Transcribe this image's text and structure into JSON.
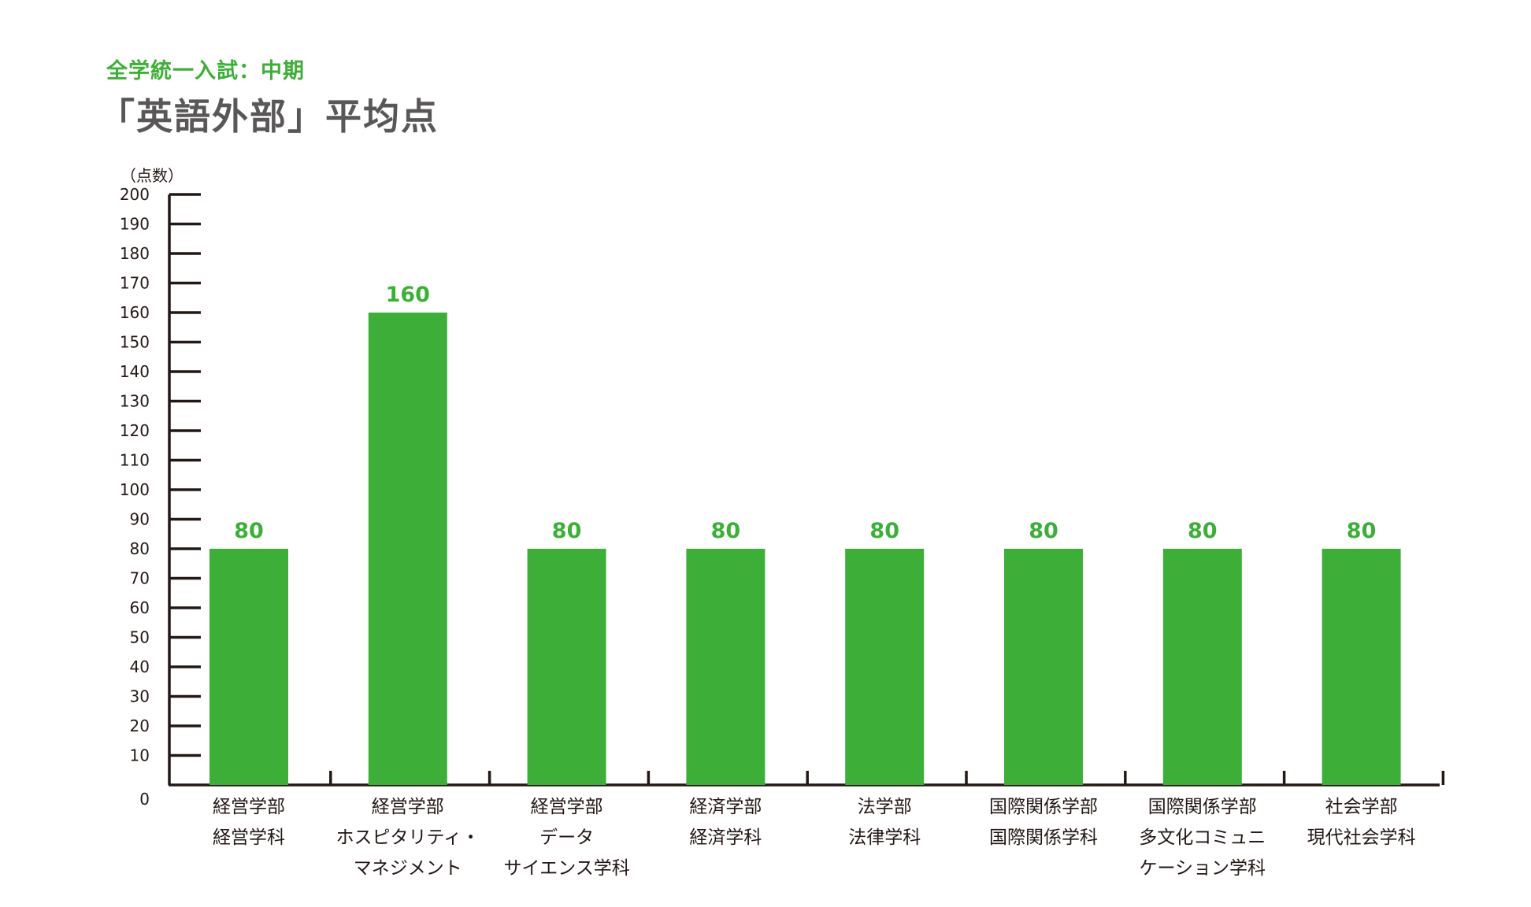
{
  "header": {
    "subtitle": "全学統一入試：中期",
    "title": "「英語外部」平均点"
  },
  "chart_data": {
    "type": "bar",
    "title": "「英語外部」平均点",
    "subtitle": "全学統一入試：中期",
    "ylabel": "（点数）",
    "xlabel": "",
    "ylim": [
      0,
      200
    ],
    "ytick_step": 10,
    "yticks": [
      "0",
      "10",
      "20",
      "30",
      "40",
      "50",
      "60",
      "70",
      "80",
      "90",
      "100",
      "110",
      "120",
      "130",
      "140",
      "150",
      "160",
      "170",
      "180",
      "190",
      "200"
    ],
    "categories": [
      [
        "経営学部",
        "経営学科"
      ],
      [
        "経営学部",
        "ホスピタリティ・",
        "マネジメント"
      ],
      [
        "経営学部",
        "データ",
        "サイエンス学科"
      ],
      [
        "経済学部",
        "経済学科"
      ],
      [
        "法学部",
        "法律学科"
      ],
      [
        "国際関係学部",
        "国際関係学科"
      ],
      [
        "国際関係学部",
        "多文化コミュニ",
        "ケーション学科"
      ],
      [
        "社会学部",
        "現代社会学科"
      ]
    ],
    "values": [
      80,
      160,
      80,
      80,
      80,
      80,
      80,
      80
    ],
    "grid": false,
    "legend": "none",
    "colors": {
      "bar": "#3daf38",
      "value_label": "#3daf38",
      "axis": "#231815",
      "title": "#595757"
    }
  }
}
